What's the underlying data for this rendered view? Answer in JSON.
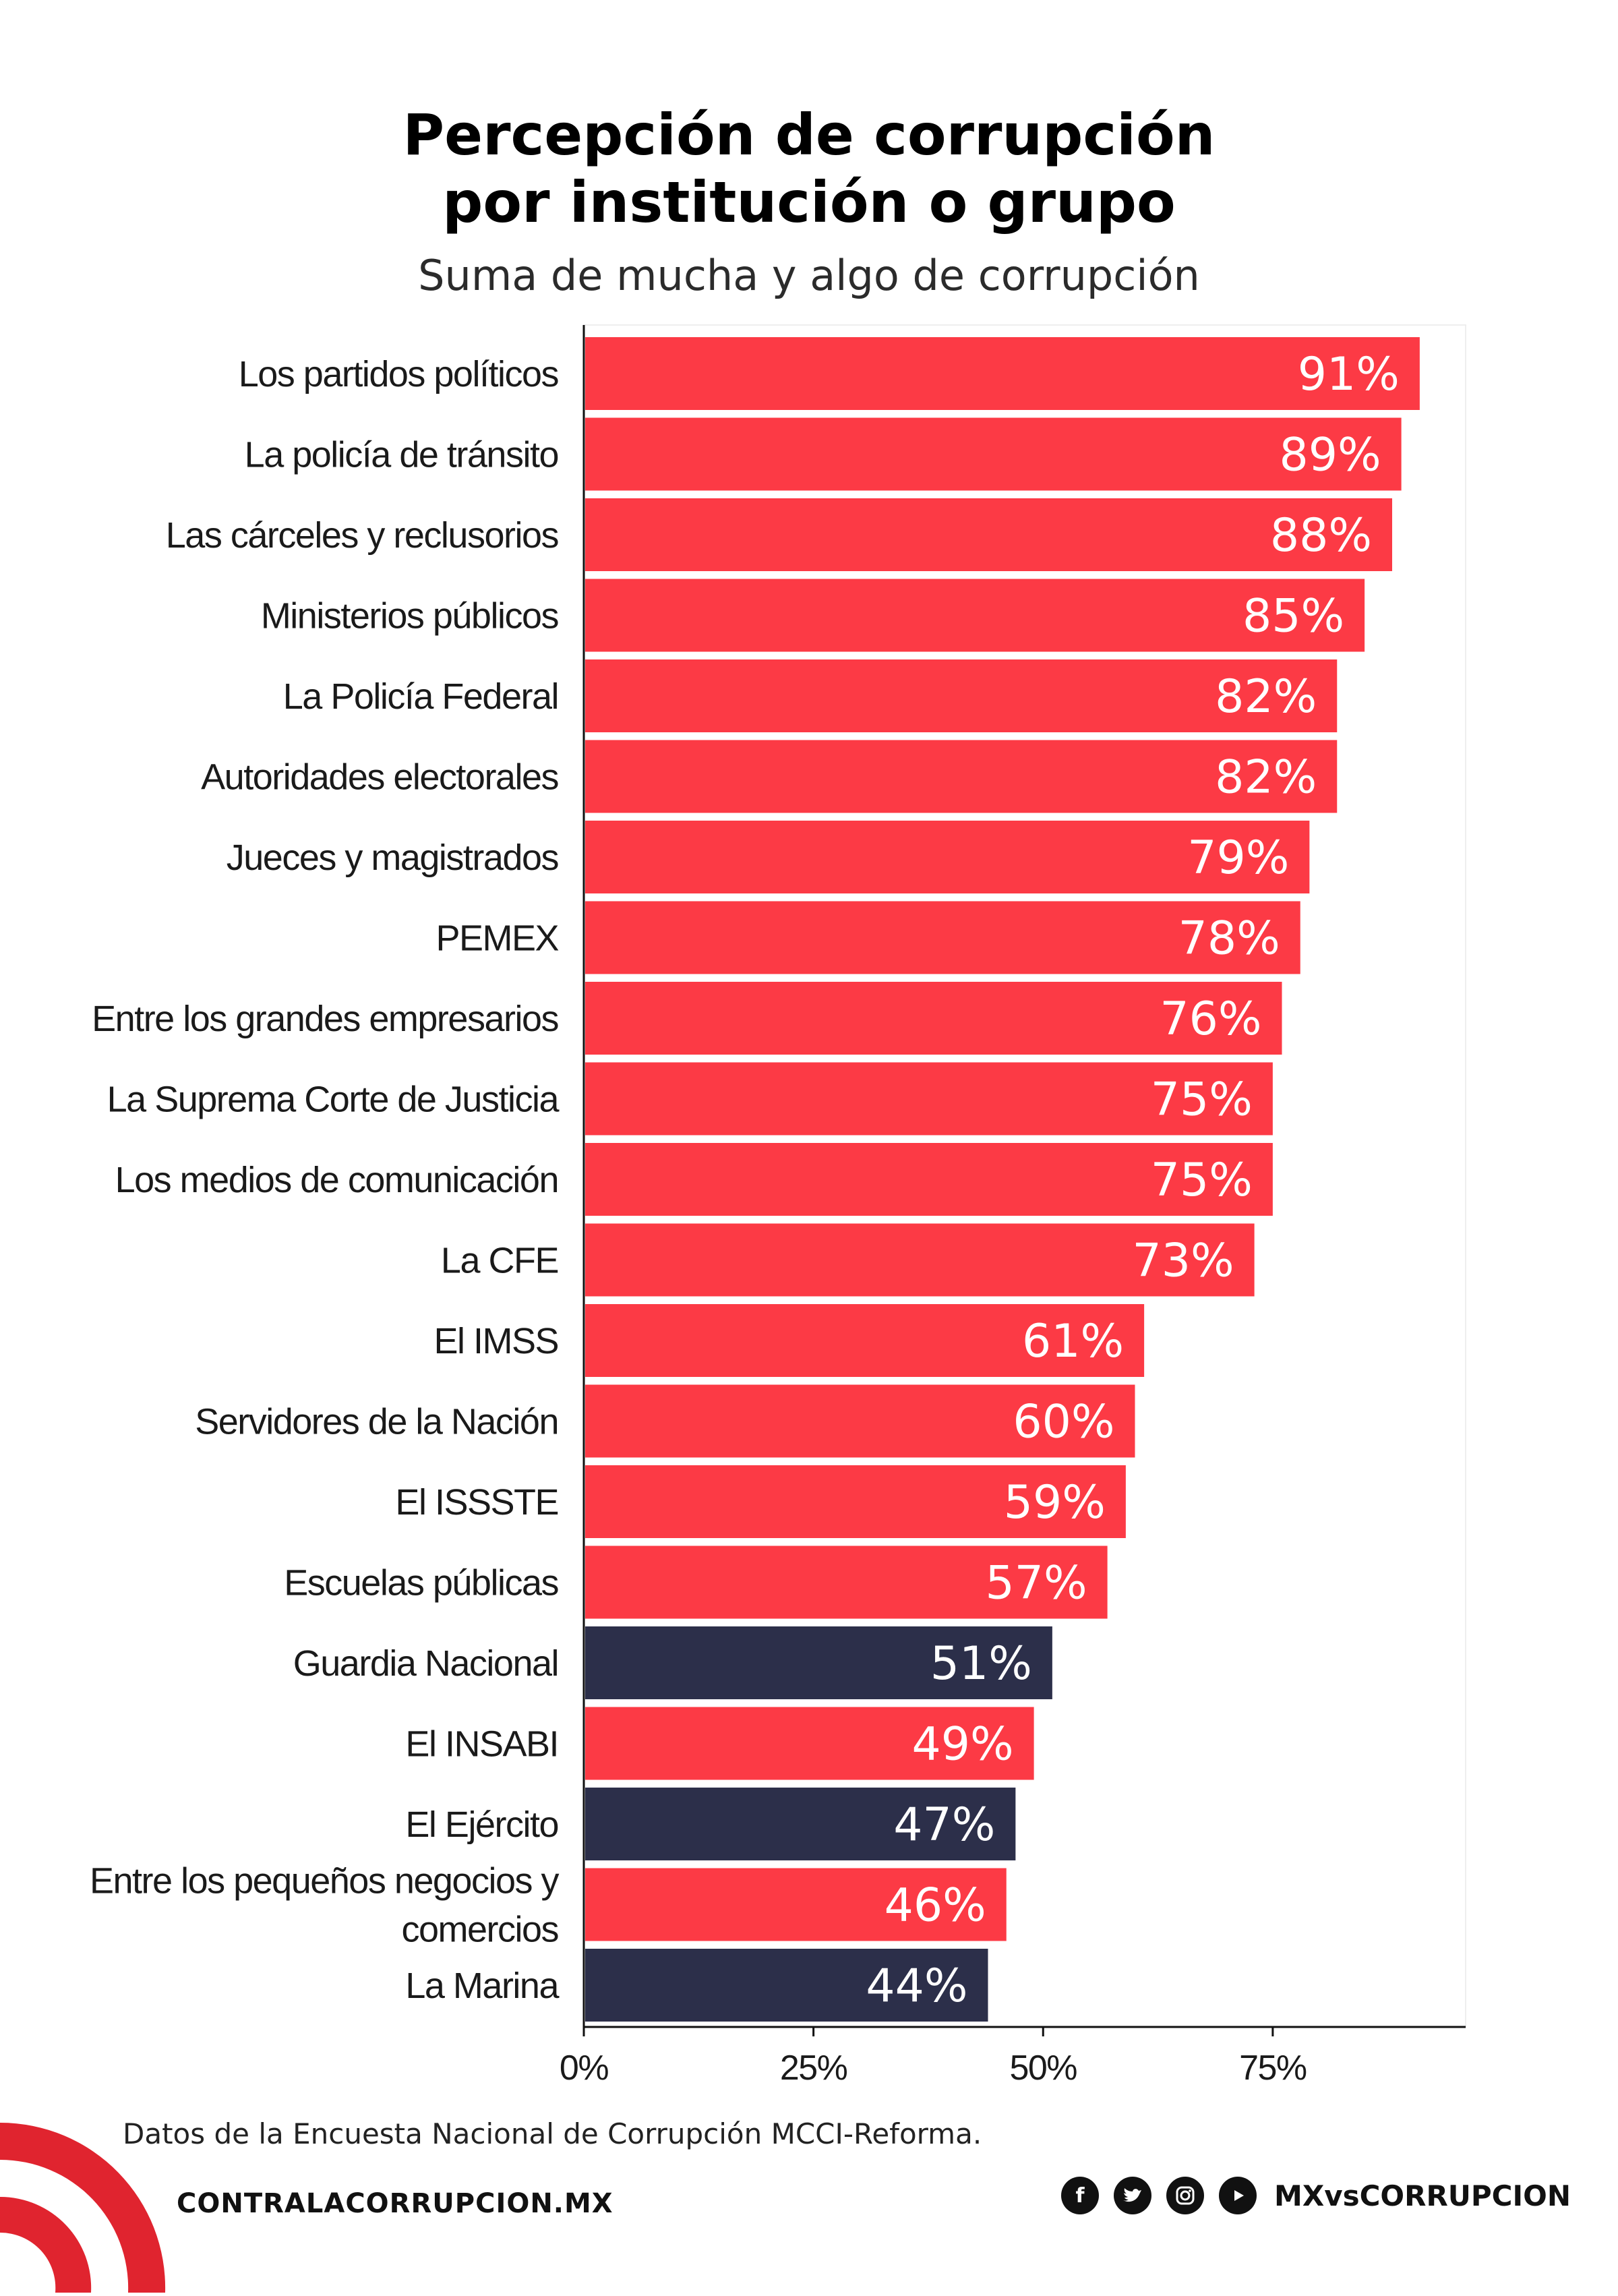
{
  "header": {
    "title_line1": "Percepción de corrupción",
    "title_line2": "por institución o grupo",
    "subtitle": "Suma de mucha y algo de corrupción"
  },
  "chart_data": {
    "type": "bar",
    "orientation": "horizontal",
    "title": "Percepción de corrupción por institución o grupo",
    "subtitle": "Suma de mucha y algo de corrupción",
    "categories": [
      "Los partidos políticos",
      "La policía de tránsito",
      "Las cárceles y reclusorios",
      "Ministerios públicos",
      "La Policía Federal",
      "Autoridades electorales",
      "Jueces y magistrados",
      "PEMEX",
      "Entre los grandes empresarios",
      "La Suprema Corte de Justicia",
      "Los medios de comunicación",
      "La CFE",
      "El IMSS",
      "Servidores de la Nación",
      "El ISSSTE",
      "Escuelas públicas",
      "Guardia Nacional",
      "El INSABI",
      "El Ejército",
      "Entre los pequeños negocios y comercios",
      "La Marina"
    ],
    "values": [
      91,
      89,
      88,
      85,
      82,
      82,
      79,
      78,
      76,
      75,
      75,
      73,
      61,
      60,
      59,
      57,
      51,
      49,
      47,
      46,
      44
    ],
    "value_labels": [
      "91%",
      "89%",
      "88%",
      "85%",
      "82%",
      "82%",
      "79%",
      "78%",
      "76%",
      "75%",
      "75%",
      "73%",
      "61%",
      "60%",
      "59%",
      "57%",
      "51%",
      "49%",
      "47%",
      "46%",
      "44%"
    ],
    "bar_groups": [
      "civil",
      "civil",
      "civil",
      "civil",
      "civil",
      "civil",
      "civil",
      "civil",
      "civil",
      "civil",
      "civil",
      "civil",
      "civil",
      "civil",
      "civil",
      "civil",
      "military",
      "civil",
      "military",
      "civil",
      "military"
    ],
    "xlim": [
      0,
      96
    ],
    "xticks": [
      0,
      25,
      50,
      75
    ],
    "xtick_labels": [
      "0%",
      "25%",
      "50%",
      "75%"
    ],
    "xlabel": "",
    "ylabel": "",
    "grid": false,
    "legend": false
  },
  "colors": {
    "civil": "#fc3a45",
    "military": "#2c2f4a",
    "logo_red": "#e0242f"
  },
  "footer": {
    "source": "Datos de la Encuesta Nacional de Corrupción MCCI-Reforma.",
    "website": "CONTRALACORRUPCION.MX",
    "social_handle": "MXvsCORRUPCION",
    "social_icons": [
      "facebook-icon",
      "twitter-icon",
      "instagram-icon",
      "youtube-icon"
    ]
  }
}
